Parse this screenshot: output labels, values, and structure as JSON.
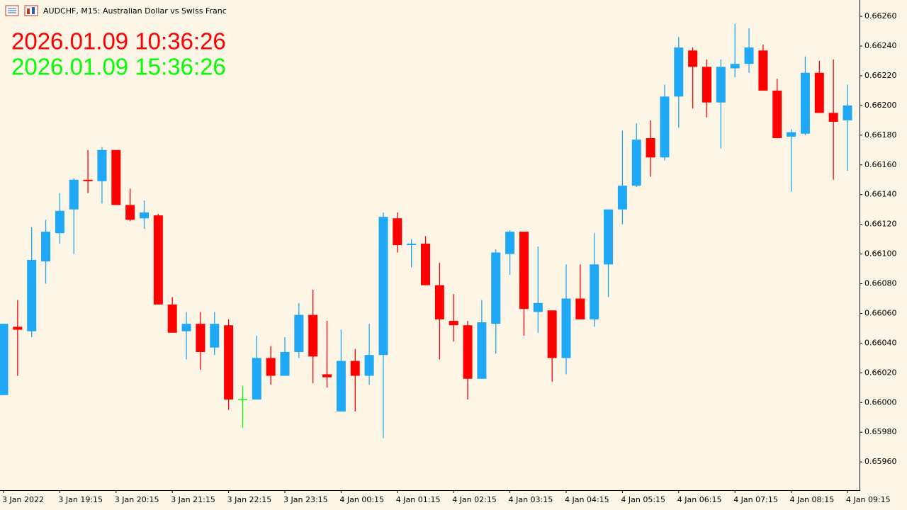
{
  "chart_data": {
    "type": "candlestick",
    "title": "AUDCHF, M15:  Australian Dollar vs Swiss Franc",
    "annotations": [
      {
        "text": "2026.01.09 10:36:26",
        "color": "#ff0000"
      },
      {
        "text": "2026.01.09 15:36:26",
        "color": "#00ff00"
      }
    ],
    "categories": [
      "3 Jan 2022",
      null,
      null,
      null,
      "3 Jan 19:15",
      null,
      null,
      null,
      "3 Jan 20:15",
      null,
      null,
      null,
      "3 Jan 21:15",
      null,
      null,
      null,
      "3 Jan 22:15",
      null,
      null,
      null,
      "3 Jan 23:15",
      null,
      null,
      null,
      "4 Jan 00:15",
      null,
      null,
      null,
      "4 Jan 01:15",
      null,
      null,
      null,
      "4 Jan 02:15",
      null,
      null,
      null,
      "4 Jan 03:15",
      null,
      null,
      null,
      "4 Jan 04:15",
      null,
      null,
      null,
      "4 Jan 05:15",
      null,
      null,
      null,
      "4 Jan 06:15",
      null,
      null,
      null,
      "4 Jan 07:15",
      null,
      null,
      null,
      "4 Jan 08:15",
      null,
      null,
      null,
      "4 Jan 09:15"
    ],
    "open": [
      0.66005,
      0.66051,
      0.66048,
      0.66095,
      0.66114,
      0.6613,
      0.6615,
      0.66149,
      0.6617,
      0.66133,
      0.66124,
      0.66126,
      0.66066,
      0.66048,
      0.66053,
      0.66037,
      0.66052,
      0.66002,
      0.66002,
      0.6603,
      0.66018,
      0.66034,
      0.66059,
      0.66019,
      0.65994,
      0.66028,
      0.66018,
      0.66032,
      0.66124,
      0.66106,
      0.66107,
      0.66079,
      0.66055,
      0.66052,
      0.66016,
      0.66053,
      0.661,
      0.66115,
      0.66061,
      0.66062,
      0.6603,
      0.6607,
      0.66056,
      0.66093,
      0.6613,
      0.66146,
      0.66178,
      0.66165,
      0.66206,
      0.66237,
      0.66226,
      0.66202,
      0.66225,
      0.66228,
      0.66237,
      0.6621,
      0.66179,
      0.66181,
      0.66222,
      0.66195,
      0.6619
    ],
    "high": [
      0.66053,
      0.66069,
      0.66118,
      0.66123,
      0.66141,
      0.66151,
      0.6617,
      0.66172,
      0.6617,
      0.66144,
      0.66136,
      0.66127,
      0.66071,
      0.66061,
      0.66061,
      0.66061,
      0.66056,
      0.66011,
      0.66045,
      0.66038,
      0.66044,
      0.66067,
      0.66076,
      0.66055,
      0.66049,
      0.66036,
      0.66053,
      0.66128,
      0.66128,
      0.6611,
      0.66112,
      0.66094,
      0.66073,
      0.66055,
      0.66069,
      0.66103,
      0.66116,
      0.66115,
      0.66105,
      0.66062,
      0.66093,
      0.66093,
      0.66114,
      0.6613,
      0.66183,
      0.66188,
      0.6619,
      0.66214,
      0.66246,
      0.66239,
      0.66231,
      0.66231,
      0.66255,
      0.66252,
      0.66241,
      0.66218,
      0.66184,
      0.66233,
      0.6623,
      0.66231,
      0.66214
    ],
    "low": [
      0.66005,
      0.66018,
      0.66044,
      0.6608,
      0.66107,
      0.661,
      0.66141,
      0.66134,
      0.66133,
      0.66122,
      0.66117,
      0.66066,
      0.66047,
      0.66029,
      0.66022,
      0.66032,
      0.65995,
      0.65983,
      0.66002,
      0.66012,
      0.66018,
      0.6603,
      0.66013,
      0.6601,
      0.65994,
      0.65994,
      0.66012,
      0.65976,
      0.66101,
      0.66091,
      0.66079,
      0.66029,
      0.66041,
      0.66002,
      0.66016,
      0.66033,
      0.66086,
      0.66045,
      0.66047,
      0.66014,
      0.66019,
      0.66056,
      0.66051,
      0.66071,
      0.6612,
      0.66145,
      0.66152,
      0.66163,
      0.66185,
      0.66198,
      0.66192,
      0.66171,
      0.66219,
      0.66222,
      0.6621,
      0.66178,
      0.66142,
      0.6618,
      0.66195,
      0.6615,
      0.66156
    ],
    "close": [
      0.66053,
      0.66049,
      0.66096,
      0.66115,
      0.66129,
      0.6615,
      0.66149,
      0.6617,
      0.66133,
      0.66123,
      0.66128,
      0.66066,
      0.66047,
      0.66053,
      0.66034,
      0.66053,
      0.66002,
      0.66002,
      0.6603,
      0.66018,
      0.66034,
      0.66059,
      0.66031,
      0.66017,
      0.66028,
      0.66018,
      0.66032,
      0.66125,
      0.66106,
      0.66107,
      0.66079,
      0.66056,
      0.66052,
      0.66016,
      0.66054,
      0.66101,
      0.66115,
      0.66063,
      0.66067,
      0.6603,
      0.6607,
      0.66056,
      0.66093,
      0.6613,
      0.66146,
      0.66177,
      0.66165,
      0.66206,
      0.66239,
      0.66226,
      0.66202,
      0.66226,
      0.66228,
      0.66239,
      0.6621,
      0.66178,
      0.66182,
      0.66222,
      0.66195,
      0.66189,
      0.662
    ],
    "up_color": "#1fa8f5",
    "down_color": "#ff0000",
    "doji_color": "#00ff00",
    "ylim": [
      0.65941,
      0.66271
    ],
    "yticks": [
      {
        "value": 0.6626,
        "label": "0.66260"
      },
      {
        "value": 0.6624,
        "label": "0.66240"
      },
      {
        "value": 0.6622,
        "label": "0.66220"
      },
      {
        "value": 0.662,
        "label": "0.66200"
      },
      {
        "value": 0.6618,
        "label": "0.66180"
      },
      {
        "value": 0.6616,
        "label": "0.66160"
      },
      {
        "value": 0.6614,
        "label": "0.66140"
      },
      {
        "value": 0.6612,
        "label": "0.66120"
      },
      {
        "value": 0.661,
        "label": "0.66100"
      },
      {
        "value": 0.6608,
        "label": "0.66080"
      },
      {
        "value": 0.6606,
        "label": "0.66060"
      },
      {
        "value": 0.6604,
        "label": "0.66040"
      },
      {
        "value": 0.6602,
        "label": "0.66020"
      },
      {
        "value": 0.66,
        "label": "0.66000"
      },
      {
        "value": 0.6598,
        "label": "0.65980"
      },
      {
        "value": 0.6596,
        "label": "0.65960"
      }
    ],
    "grid": false
  }
}
